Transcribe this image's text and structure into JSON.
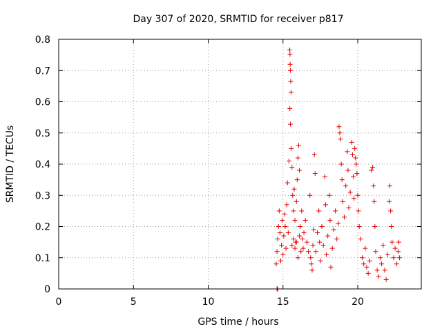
{
  "chart_data": {
    "type": "scatter",
    "title": "Day 307 of 2020, SRMTID for receiver p817",
    "xlabel": "GPS time / hours",
    "ylabel": "SRMTID / TECUs",
    "xlim": [
      0,
      24.25
    ],
    "ylim": [
      0,
      0.8
    ],
    "xticks": [
      0,
      5,
      10,
      15,
      20
    ],
    "yticks": [
      0,
      0.1,
      0.2,
      0.3,
      0.4,
      0.5,
      0.6,
      0.7,
      0.8
    ],
    "grid": true,
    "marker": "plus",
    "color": "#e00000",
    "series": [
      {
        "name": "SRMTID",
        "points": [
          [
            14.6,
            0.0
          ],
          [
            14.65,
            0.0
          ],
          [
            14.62,
            0.0
          ],
          [
            14.55,
            0.08
          ],
          [
            14.6,
            0.12
          ],
          [
            14.65,
            0.16
          ],
          [
            14.7,
            0.2
          ],
          [
            14.75,
            0.25
          ],
          [
            14.8,
            0.18
          ],
          [
            14.85,
            0.09
          ],
          [
            14.9,
            0.14
          ],
          [
            14.95,
            0.22
          ],
          [
            15.0,
            0.11
          ],
          [
            15.05,
            0.17
          ],
          [
            15.1,
            0.24
          ],
          [
            15.15,
            0.2
          ],
          [
            15.2,
            0.13
          ],
          [
            15.25,
            0.27
          ],
          [
            15.3,
            0.34
          ],
          [
            15.35,
            0.18
          ],
          [
            15.4,
            0.41
          ],
          [
            15.45,
            0.766
          ],
          [
            15.47,
            0.752
          ],
          [
            15.48,
            0.72
          ],
          [
            15.5,
            0.7
          ],
          [
            15.52,
            0.665
          ],
          [
            15.54,
            0.63
          ],
          [
            15.46,
            0.578
          ],
          [
            15.5,
            0.528
          ],
          [
            15.55,
            0.45
          ],
          [
            15.6,
            0.39
          ],
          [
            15.65,
            0.3
          ],
          [
            15.7,
            0.25
          ],
          [
            15.75,
            0.32
          ],
          [
            15.8,
            0.22
          ],
          [
            15.85,
            0.15
          ],
          [
            15.9,
            0.28
          ],
          [
            15.95,
            0.35
          ],
          [
            16.0,
            0.42
          ],
          [
            16.05,
            0.46
          ],
          [
            16.1,
            0.38
          ],
          [
            16.15,
            0.2
          ],
          [
            16.2,
            0.12
          ],
          [
            16.25,
            0.25
          ],
          [
            16.3,
            0.16
          ],
          [
            15.6,
            0.14
          ],
          [
            15.7,
            0.16
          ],
          [
            15.8,
            0.13
          ],
          [
            15.9,
            0.15
          ],
          [
            16.0,
            0.1
          ],
          [
            16.1,
            0.17
          ],
          [
            16.35,
            0.13
          ],
          [
            16.4,
            0.18
          ],
          [
            16.5,
            0.22
          ],
          [
            16.6,
            0.15
          ],
          [
            16.7,
            0.12
          ],
          [
            16.8,
            0.3
          ],
          [
            16.85,
            0.1
          ],
          [
            16.9,
            0.08
          ],
          [
            16.95,
            0.06
          ],
          [
            17.0,
            0.14
          ],
          [
            17.05,
            0.19
          ],
          [
            17.1,
            0.43
          ],
          [
            17.15,
            0.37
          ],
          [
            17.2,
            0.12
          ],
          [
            17.3,
            0.18
          ],
          [
            17.4,
            0.25
          ],
          [
            17.45,
            0.15
          ],
          [
            17.5,
            0.09
          ],
          [
            17.6,
            0.2
          ],
          [
            17.7,
            0.14
          ],
          [
            17.8,
            0.36
          ],
          [
            17.85,
            0.27
          ],
          [
            17.9,
            0.11
          ],
          [
            18.0,
            0.17
          ],
          [
            18.1,
            0.3
          ],
          [
            18.15,
            0.22
          ],
          [
            18.2,
            0.07
          ],
          [
            18.3,
            0.13
          ],
          [
            18.4,
            0.19
          ],
          [
            18.5,
            0.25
          ],
          [
            18.6,
            0.16
          ],
          [
            18.7,
            0.21
          ],
          [
            18.75,
            0.52
          ],
          [
            18.8,
            0.5
          ],
          [
            18.85,
            0.48
          ],
          [
            18.9,
            0.4
          ],
          [
            18.95,
            0.35
          ],
          [
            19.0,
            0.28
          ],
          [
            19.1,
            0.23
          ],
          [
            19.2,
            0.33
          ],
          [
            19.3,
            0.44
          ],
          [
            19.35,
            0.38
          ],
          [
            19.4,
            0.26
          ],
          [
            19.5,
            0.31
          ],
          [
            19.6,
            0.47
          ],
          [
            19.65,
            0.43
          ],
          [
            19.7,
            0.36
          ],
          [
            19.75,
            0.29
          ],
          [
            19.8,
            0.45
          ],
          [
            19.85,
            0.42
          ],
          [
            19.9,
            0.4
          ],
          [
            19.95,
            0.37
          ],
          [
            20.0,
            0.3
          ],
          [
            20.05,
            0.25
          ],
          [
            20.1,
            0.2
          ],
          [
            20.2,
            0.16
          ],
          [
            20.3,
            0.1
          ],
          [
            20.4,
            0.08
          ],
          [
            20.5,
            0.13
          ],
          [
            20.6,
            0.07
          ],
          [
            20.7,
            0.05
          ],
          [
            20.8,
            0.09
          ],
          [
            20.9,
            0.38
          ],
          [
            21.0,
            0.39
          ],
          [
            21.05,
            0.33
          ],
          [
            21.1,
            0.28
          ],
          [
            21.15,
            0.2
          ],
          [
            21.2,
            0.12
          ],
          [
            21.3,
            0.06
          ],
          [
            21.4,
            0.04
          ],
          [
            21.5,
            0.1
          ],
          [
            21.6,
            0.08
          ],
          [
            21.7,
            0.14
          ],
          [
            21.8,
            0.06
          ],
          [
            21.9,
            0.03
          ],
          [
            22.0,
            0.11
          ],
          [
            22.1,
            0.28
          ],
          [
            22.15,
            0.33
          ],
          [
            22.2,
            0.25
          ],
          [
            22.25,
            0.2
          ],
          [
            22.3,
            0.15
          ],
          [
            22.4,
            0.1
          ],
          [
            22.5,
            0.13
          ],
          [
            22.6,
            0.08
          ],
          [
            22.7,
            0.12
          ],
          [
            22.75,
            0.15
          ],
          [
            22.8,
            0.1
          ]
        ]
      }
    ]
  }
}
